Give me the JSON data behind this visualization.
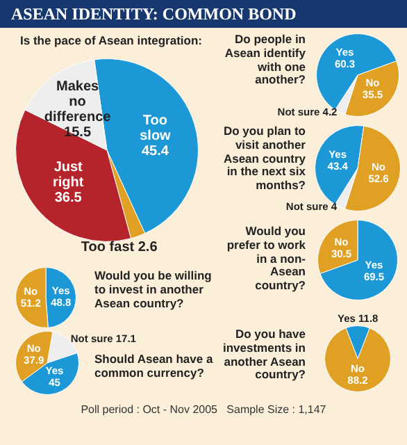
{
  "chart_data": [
    {
      "type": "pie",
      "title": "ASEAN IDENTITY: COMMON BOND",
      "subtitle": "Is the pace of Asean integration:",
      "categories": [
        "Too slow",
        "Too fast",
        "Just right",
        "Makes no difference"
      ],
      "values": [
        45.4,
        2.6,
        36.5,
        15.5
      ],
      "colors": [
        "#1b98d5",
        "#e0a024",
        "#b5242a",
        "#eeeeee"
      ],
      "data_labels": true
    },
    {
      "type": "pie",
      "title": "Do people in Asean identify with one another?",
      "categories": [
        "Yes",
        "No",
        "Not sure"
      ],
      "values": [
        60.3,
        35.5,
        4.2
      ],
      "colors": [
        "#1b98d5",
        "#e0a024",
        "#eeeeee"
      ],
      "data_labels": true
    },
    {
      "type": "pie",
      "title": "Do you plan to visit another Asean country in the next six months?",
      "categories": [
        "Yes",
        "No",
        "Not sure"
      ],
      "values": [
        43.4,
        52.6,
        4
      ],
      "colors": [
        "#1b98d5",
        "#e0a024",
        "#eeeeee"
      ],
      "data_labels": true
    },
    {
      "type": "pie",
      "title": "Would you be willing to invest in another Asean country?",
      "categories": [
        "Yes",
        "No"
      ],
      "values": [
        48.8,
        51.2
      ],
      "colors": [
        "#1b98d5",
        "#e0a024"
      ],
      "data_labels": true
    },
    {
      "type": "pie",
      "title": "Would you prefer to work in a non-Asean country?",
      "categories": [
        "Yes",
        "No"
      ],
      "values": [
        69.5,
        30.5
      ],
      "colors": [
        "#1b98d5",
        "#e0a024"
      ],
      "data_labels": true
    },
    {
      "type": "pie",
      "title": "Should Asean have a common currency?",
      "categories": [
        "Not sure",
        "Yes",
        "No"
      ],
      "values": [
        17.1,
        45,
        37.9
      ],
      "colors": [
        "#eeeeee",
        "#1b98d5",
        "#e0a024"
      ],
      "data_labels": true
    },
    {
      "type": "pie",
      "title": "Do you have investments in another Asean country?",
      "categories": [
        "Yes",
        "No"
      ],
      "values": [
        11.8,
        88.2
      ],
      "colors": [
        "#1b98d5",
        "#e0a024"
      ],
      "data_labels": true,
      "annotations": [
        "Poll period : Oct - Nov 2005   Sample Size : 1,147"
      ]
    }
  ]
}
